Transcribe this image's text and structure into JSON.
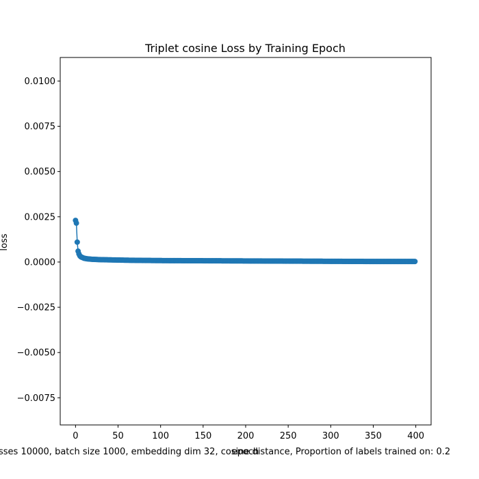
{
  "chart_data": {
    "type": "line",
    "title": "Triplet cosine Loss by Training Epoch",
    "xlabel": "epoch",
    "ylabel": "loss",
    "caption": "sses 10000, batch size 1000, embedding dim 32, cosine distance, Proportion of labels trained on: 0.2",
    "xlim": [
      -18,
      418
    ],
    "ylim": [
      -0.009,
      0.0113
    ],
    "xticks": [
      0,
      50,
      100,
      150,
      200,
      250,
      300,
      350,
      400
    ],
    "xtick_labels": [
      "0",
      "50",
      "100",
      "150",
      "200",
      "250",
      "300",
      "350",
      "400"
    ],
    "yticks": [
      -0.0075,
      -0.005,
      -0.0025,
      0.0,
      0.0025,
      0.005,
      0.0075,
      0.01
    ],
    "ytick_labels": [
      "−0.0075",
      "−0.0050",
      "−0.0025",
      "0.0000",
      "0.0025",
      "0.0050",
      "0.0075",
      "0.0100"
    ],
    "grid": false,
    "color": "#1f77b4",
    "marker": "circle",
    "series": [
      {
        "x": [
          0,
          1,
          2,
          3,
          4,
          5,
          6,
          7,
          8,
          9,
          10,
          12,
          15,
          20,
          25,
          30,
          40,
          50,
          60,
          75,
          100,
          150,
          200,
          250,
          300,
          350,
          399
        ],
        "y": [
          0.0023,
          0.00215,
          0.0011,
          0.0006,
          0.00045,
          0.00035,
          0.0003,
          0.00027,
          0.00025,
          0.00023,
          0.00021,
          0.00019,
          0.00017,
          0.00015,
          0.00014,
          0.00013,
          0.00012,
          0.00011,
          0.0001,
          9e-05,
          8e-05,
          7e-05,
          6e-05,
          5e-05,
          4e-05,
          3e-05,
          3e-05
        ]
      }
    ]
  }
}
